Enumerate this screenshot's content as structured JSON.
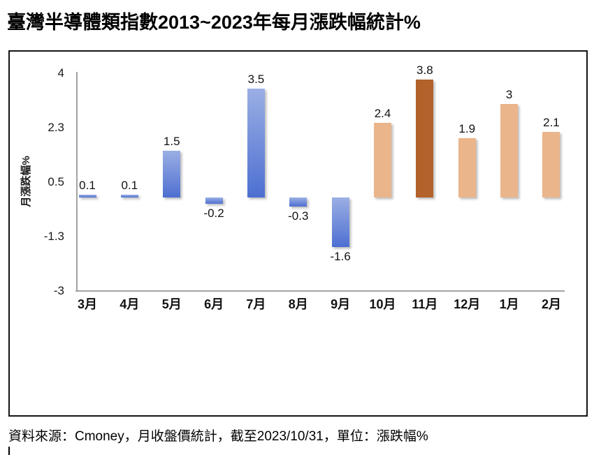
{
  "title": "臺灣半導體類指數2013~2023年每月漲跌幅統計%",
  "source_note": "資料來源：Cmoney，月收盤價統計，截至2023/10/31，單位：漲跌幅%",
  "chart_data": {
    "type": "bar",
    "title": "臺灣半導體類指數2013~2023年每月漲跌幅統計%",
    "categories": [
      "3月",
      "4月",
      "5月",
      "6月",
      "7月",
      "8月",
      "9月",
      "10月",
      "11月",
      "12月",
      "1月",
      "2月"
    ],
    "values": [
      0.1,
      0.1,
      1.5,
      -0.2,
      3.5,
      -0.3,
      -1.6,
      2.4,
      3.8,
      1.9,
      3,
      2.1
    ],
    "data_labels": [
      "0.1",
      "0.1",
      "1.5",
      "-0.2",
      "3.5",
      "-0.3",
      "-1.6",
      "2.4",
      "3.8",
      "1.9",
      "3",
      "2.1"
    ],
    "xlabel": "",
    "ylabel": "月漲跌幅%",
    "ylim": [
      -3,
      4
    ],
    "ytick_labels": [
      "4",
      "2.3",
      "0.5",
      "-1.3",
      "-3"
    ],
    "ytick_values": [
      4,
      2.25,
      0.5,
      -1.25,
      -3
    ],
    "grid": false,
    "legend": false,
    "colors": {
      "blue_gradient_top": "#9BAFE4",
      "blue_gradient_bottom": "#4D6FD1",
      "orange_light": "#EBB58B",
      "orange_dark": "#B2622A",
      "axis_line": "#a3a3a3"
    },
    "bar_styles": [
      "blue",
      "blue",
      "blue",
      "blue",
      "blue",
      "blue",
      "blue",
      "orange_light",
      "orange_dark",
      "orange_light",
      "orange_light",
      "orange_light"
    ]
  }
}
